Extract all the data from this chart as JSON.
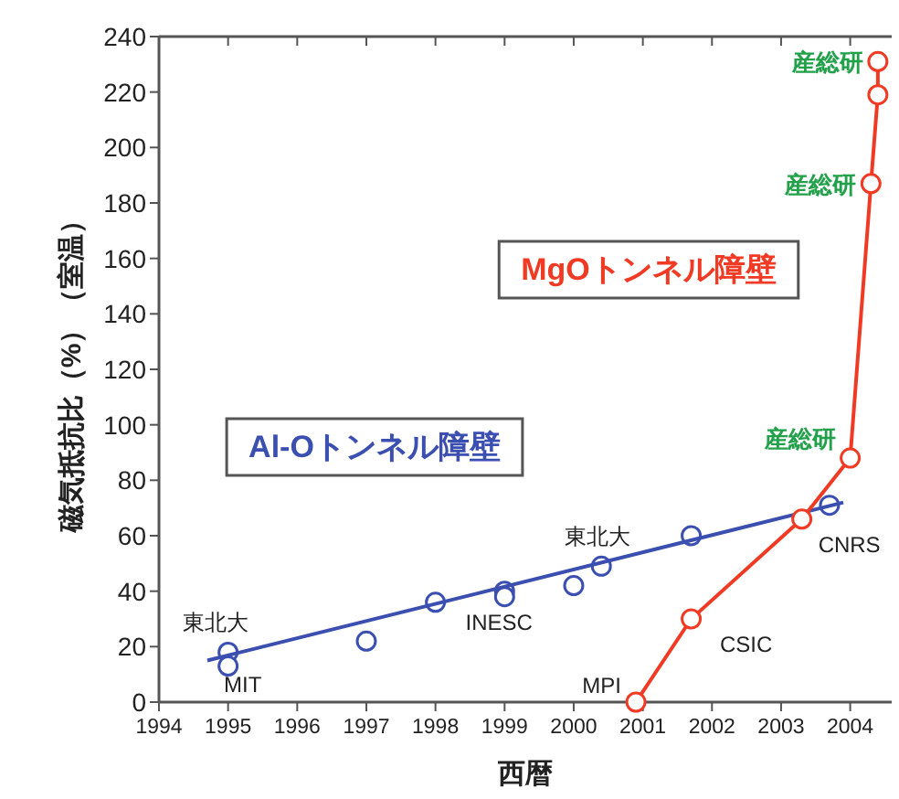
{
  "chart_data": {
    "type": "scatter",
    "xlabel": "西暦",
    "ylabel": "磁気抵抗比（%）（室温）",
    "xlim": [
      1994,
      2004.6
    ],
    "xticks": [
      1994,
      1995,
      1996,
      1997,
      1998,
      1999,
      2000,
      2001,
      2002,
      2003,
      2004
    ],
    "ylim": [
      0,
      240
    ],
    "yticks": [
      0,
      20,
      40,
      60,
      80,
      100,
      120,
      140,
      160,
      180,
      200,
      220,
      240
    ],
    "grid": false,
    "legend": false,
    "series": [
      {
        "color": "#3b4fb0",
        "marker": "circle",
        "x": [
          1995,
          1995,
          1997,
          1998,
          1999,
          1999,
          2000,
          2000.4,
          2001.7,
          2003.7
        ],
        "values": [
          18,
          13,
          22,
          36,
          40,
          38,
          42,
          49,
          60,
          71
        ]
      },
      {
        "type": "line",
        "name": "Al-Oトンネル障壁",
        "color": "#3b4fb0",
        "marker": "none",
        "line_style": "solid",
        "x": [
          1994.7,
          2003.9
        ],
        "values": [
          15,
          72
        ]
      },
      {
        "type": "line",
        "name": "MgOトンネル障壁",
        "color": "#f03a24",
        "marker": "circle",
        "line_style": "solid",
        "x": [
          2000.9,
          2001.7,
          2003.3,
          2004.0,
          2004.3,
          2004.4,
          2004.4
        ],
        "values": [
          0,
          30,
          66,
          88,
          187,
          219,
          231
        ]
      }
    ],
    "annotations": [
      {
        "text": "東北大",
        "x": 1995,
        "y": 18
      },
      {
        "text": "MIT",
        "x": 1995,
        "y": 13
      },
      {
        "text": "INESC",
        "x": 1999,
        "y": 38
      },
      {
        "text": "東北大",
        "x": 2000.4,
        "y": 49
      },
      {
        "text": "MPI",
        "x": 2000.9,
        "y": 0
      },
      {
        "text": "CSIC",
        "x": 2001.7,
        "y": 30
      },
      {
        "text": "CNRS",
        "x": 2003.3,
        "y": 66
      },
      {
        "text": "産総研",
        "x": 2004.0,
        "y": 88
      },
      {
        "text": "産総研",
        "x": 2004.3,
        "y": 187
      },
      {
        "text": "産総研",
        "x": 2004.4,
        "y": 231
      }
    ]
  }
}
